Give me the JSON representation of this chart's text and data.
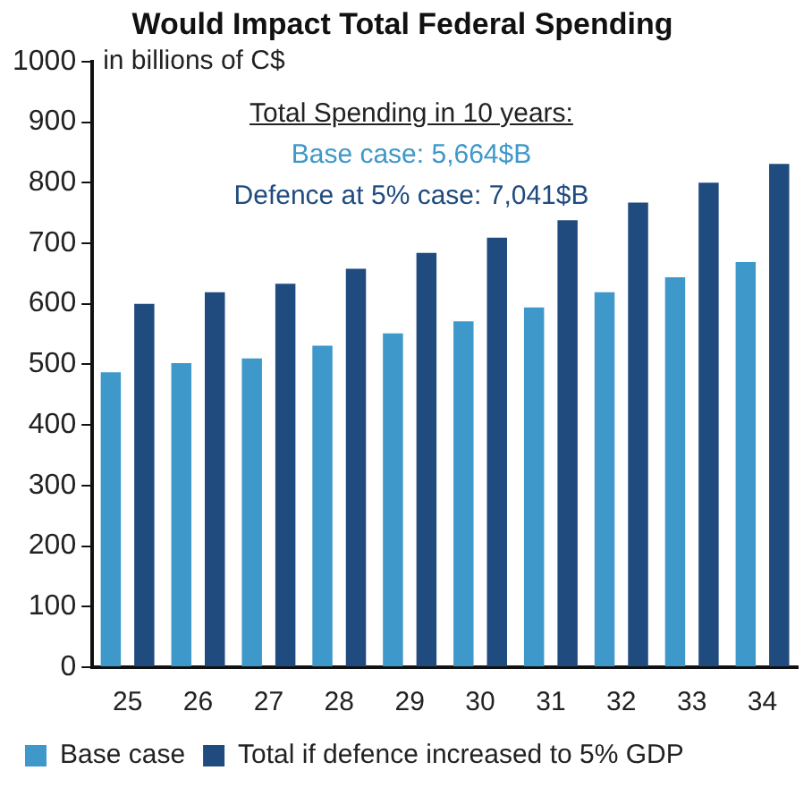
{
  "chart_data": {
    "type": "bar",
    "title": "Would Impact Total Federal Spending",
    "ylabel": "in billions of C$",
    "categories": [
      "25",
      "26",
      "27",
      "28",
      "29",
      "30",
      "31",
      "32",
      "33",
      "34"
    ],
    "series": [
      {
        "name": "Base case",
        "color": "#3f98ca",
        "values": [
          487,
          502,
          510,
          531,
          551,
          571,
          594,
          619,
          644,
          669
        ]
      },
      {
        "name": "Total if defence increased to 5% GDP",
        "color": "#204b7e",
        "values": [
          600,
          619,
          633,
          658,
          684,
          709,
          738,
          767,
          800,
          831
        ]
      }
    ],
    "ylim": [
      0,
      1000
    ],
    "yticks": [
      0,
      100,
      200,
      300,
      400,
      500,
      600,
      700,
      800,
      900,
      1000
    ],
    "grid": false,
    "legend": "bottom",
    "annotations": [
      "Total Spending in 10 years:",
      "Base case: 5,664$B",
      "Defence at 5% case: 7,041$B"
    ]
  }
}
